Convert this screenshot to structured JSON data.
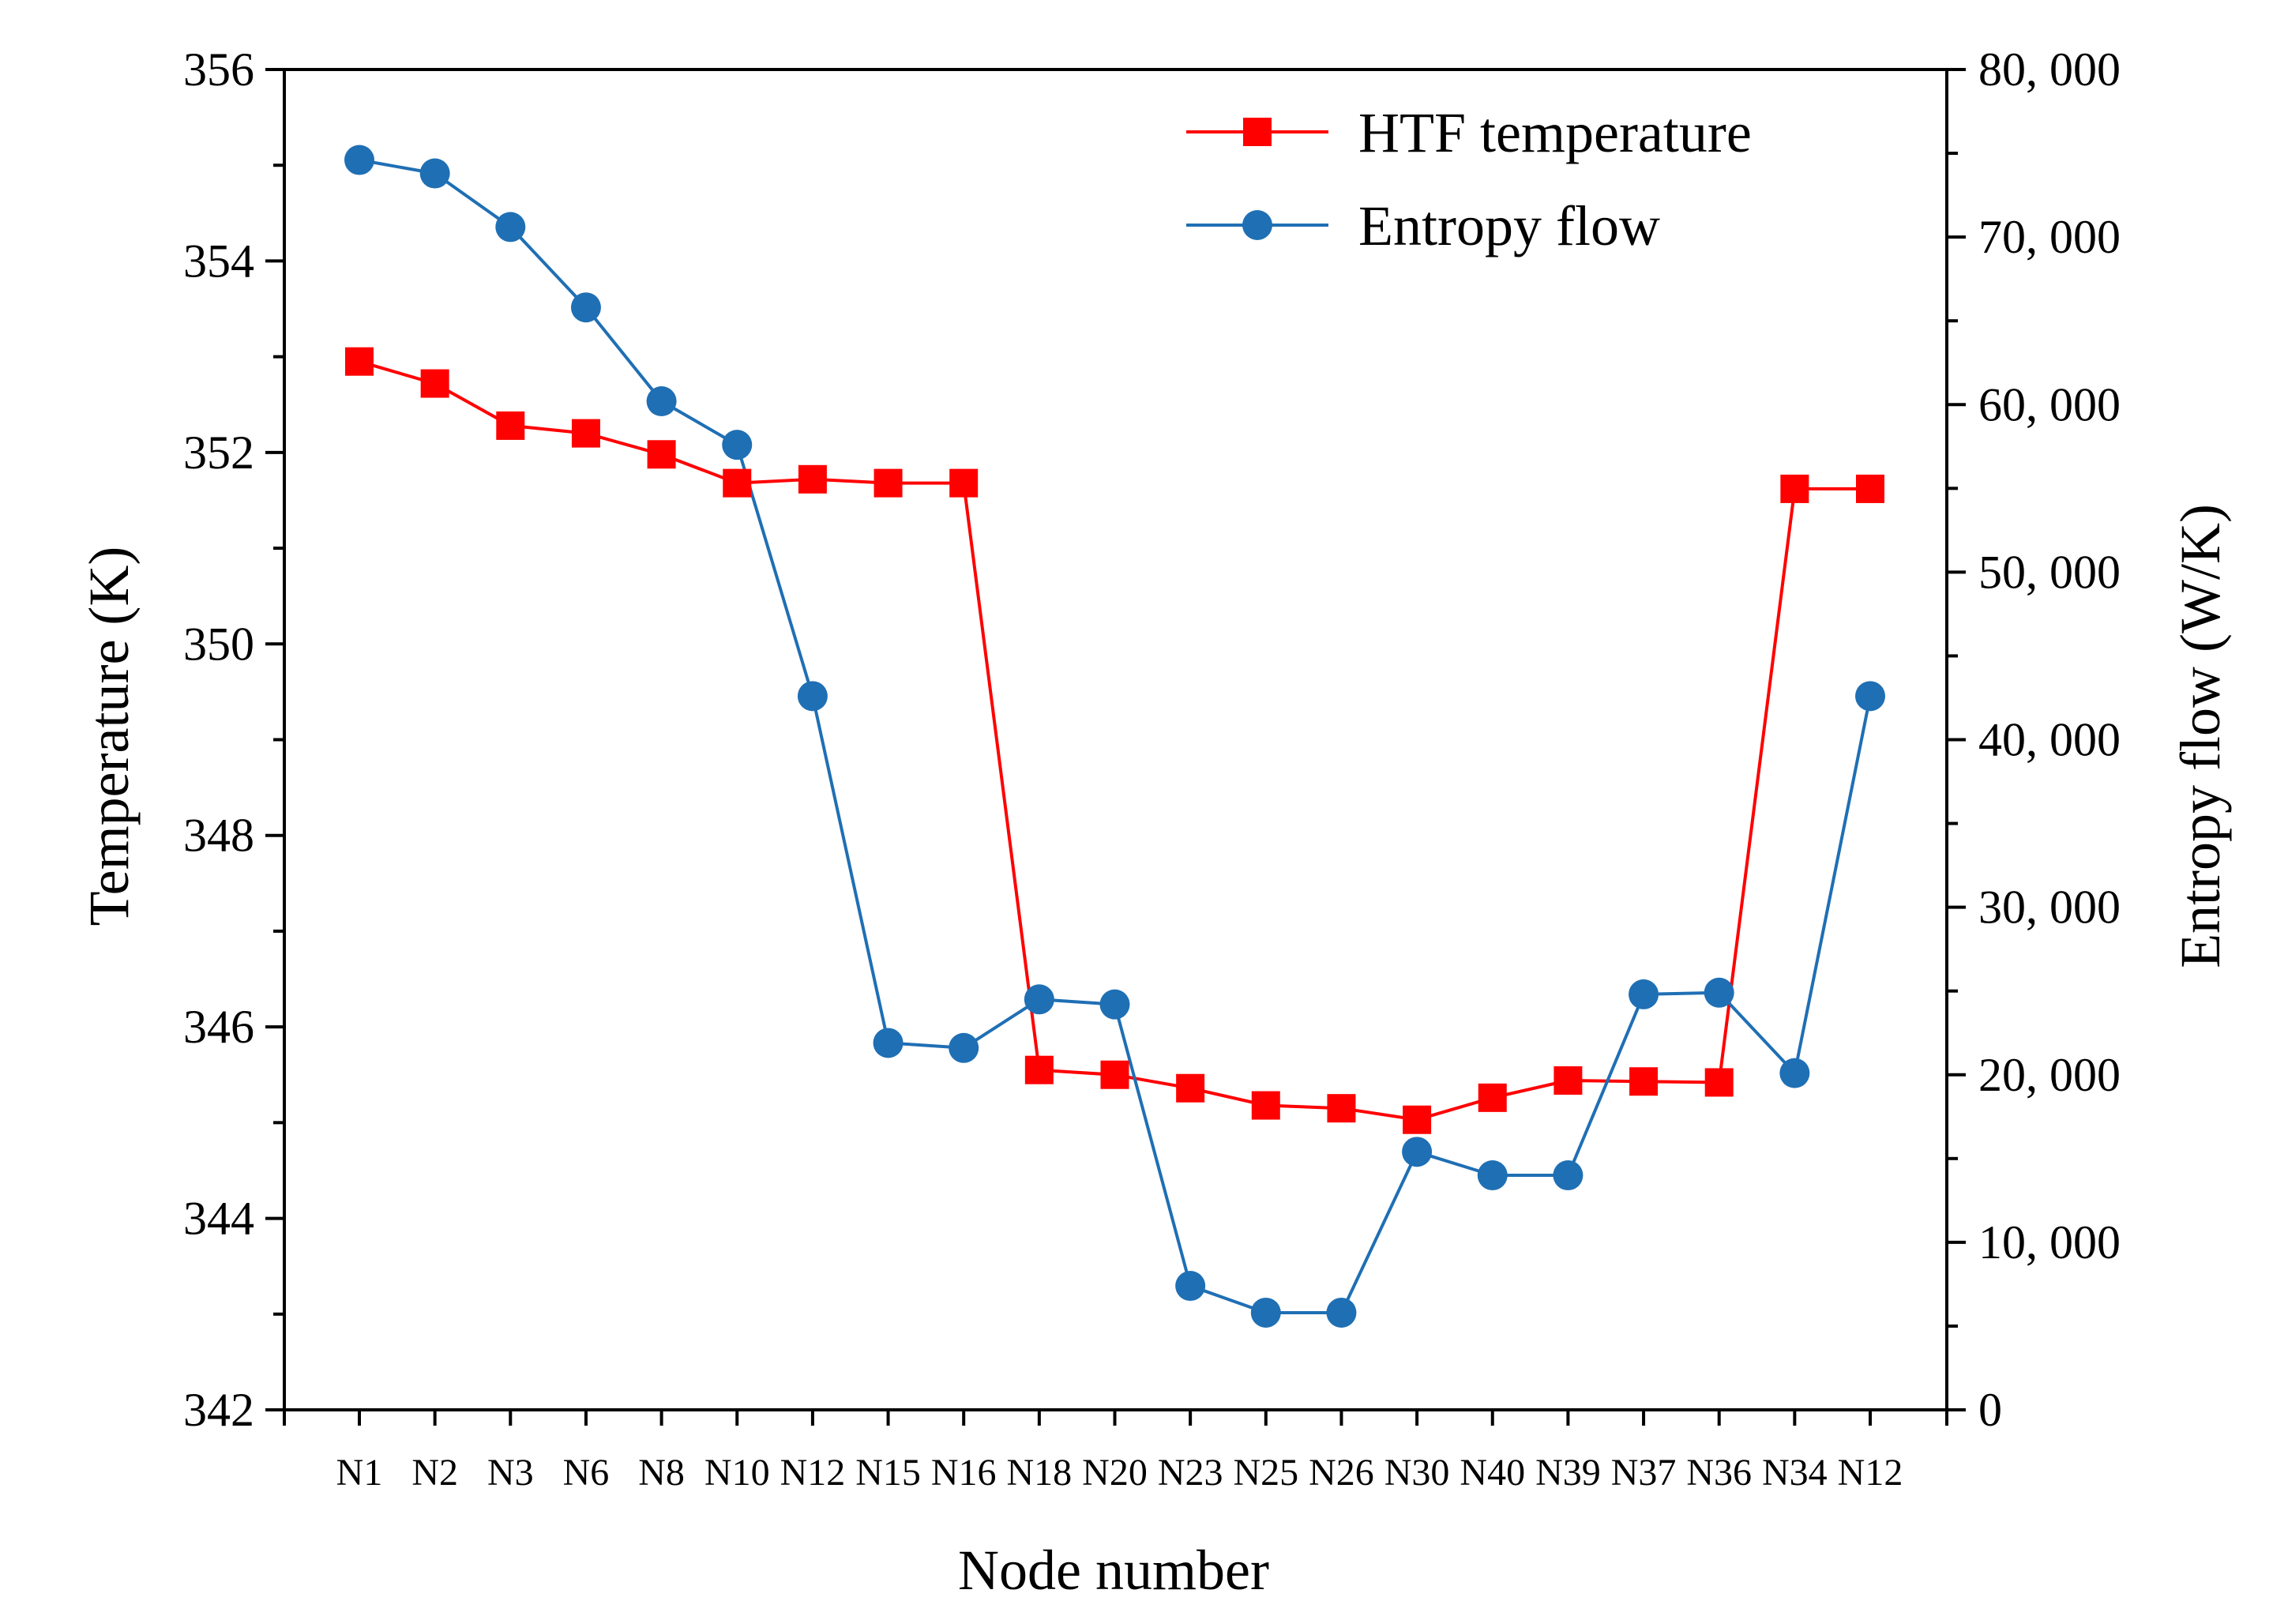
{
  "chart_data": {
    "type": "line",
    "title": "",
    "xlabel": "Node number",
    "ylabel_left": "Temperature (K)",
    "ylabel_right": "Entropy flow (W/K)",
    "categories": [
      "N1",
      "N2",
      "N3",
      "N6",
      "N8",
      "N10",
      "N12",
      "N15",
      "N16",
      "N18",
      "N20",
      "N23",
      "N25",
      "N26",
      "N30",
      "N40",
      "N39",
      "N37",
      "N36",
      "N34",
      "N12"
    ],
    "ylim_left": [
      342,
      356
    ],
    "yticks_left": [
      "342",
      "344",
      "346",
      "348",
      "350",
      "352",
      "354",
      "356"
    ],
    "ylim_right": [
      0,
      80000
    ],
    "yticks_right": [
      "0",
      "10, 000",
      "20, 000",
      "30, 000",
      "40, 000",
      "50, 000",
      "60, 000",
      "70, 000",
      "80, 000"
    ],
    "legend_position": "top-right",
    "series": [
      {
        "name": "HTF temperature",
        "axis": "left",
        "color": "#ff0000",
        "marker": "square",
        "values": [
          352.95,
          352.72,
          352.28,
          352.2,
          351.98,
          351.68,
          351.72,
          351.68,
          351.68,
          345.55,
          345.5,
          345.36,
          345.18,
          345.15,
          345.03,
          345.26,
          345.44,
          345.43,
          345.42,
          351.62,
          351.62
        ]
      },
      {
        "name": "Entropy flow",
        "axis": "right",
        "color": "#1f6fb4",
        "marker": "circle",
        "values": [
          74600,
          73800,
          70600,
          65800,
          60200,
          57600,
          42600,
          21900,
          21600,
          24500,
          24200,
          7400,
          5800,
          5800,
          15400,
          14000,
          14000,
          24800,
          24900,
          20100,
          42600
        ]
      }
    ]
  }
}
